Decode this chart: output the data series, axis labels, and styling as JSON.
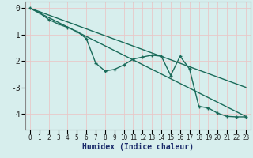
{
  "xlabel": "Humidex (Indice chaleur)",
  "background_color": "#d7eeed",
  "grid_color": "#c8dedd",
  "line_color": "#1a6b5a",
  "xlim": [
    -0.5,
    23.5
  ],
  "ylim": [
    -4.6,
    0.25
  ],
  "yticks": [
    0,
    -1,
    -2,
    -3,
    -4
  ],
  "xticks": [
    0,
    1,
    2,
    3,
    4,
    5,
    6,
    7,
    8,
    9,
    10,
    11,
    12,
    13,
    14,
    15,
    16,
    17,
    18,
    19,
    20,
    21,
    22,
    23
  ],
  "line1_x": [
    0,
    23
  ],
  "line1_y": [
    0.0,
    -4.1
  ],
  "line2_x": [
    0,
    23
  ],
  "line2_y": [
    0.0,
    -3.0
  ],
  "line3_x": [
    0,
    1,
    2,
    3,
    4,
    5,
    6,
    7,
    8,
    9,
    10,
    11,
    12,
    13,
    14,
    15,
    16,
    17,
    18,
    19,
    20,
    21,
    22,
    23
  ],
  "line3_y": [
    0.0,
    -0.18,
    -0.43,
    -0.6,
    -0.73,
    -0.88,
    -1.15,
    -2.08,
    -2.38,
    -2.32,
    -2.15,
    -1.93,
    -1.85,
    -1.78,
    -1.82,
    -2.55,
    -1.82,
    -2.3,
    -3.72,
    -3.78,
    -3.98,
    -4.1,
    -4.12,
    -4.12
  ]
}
